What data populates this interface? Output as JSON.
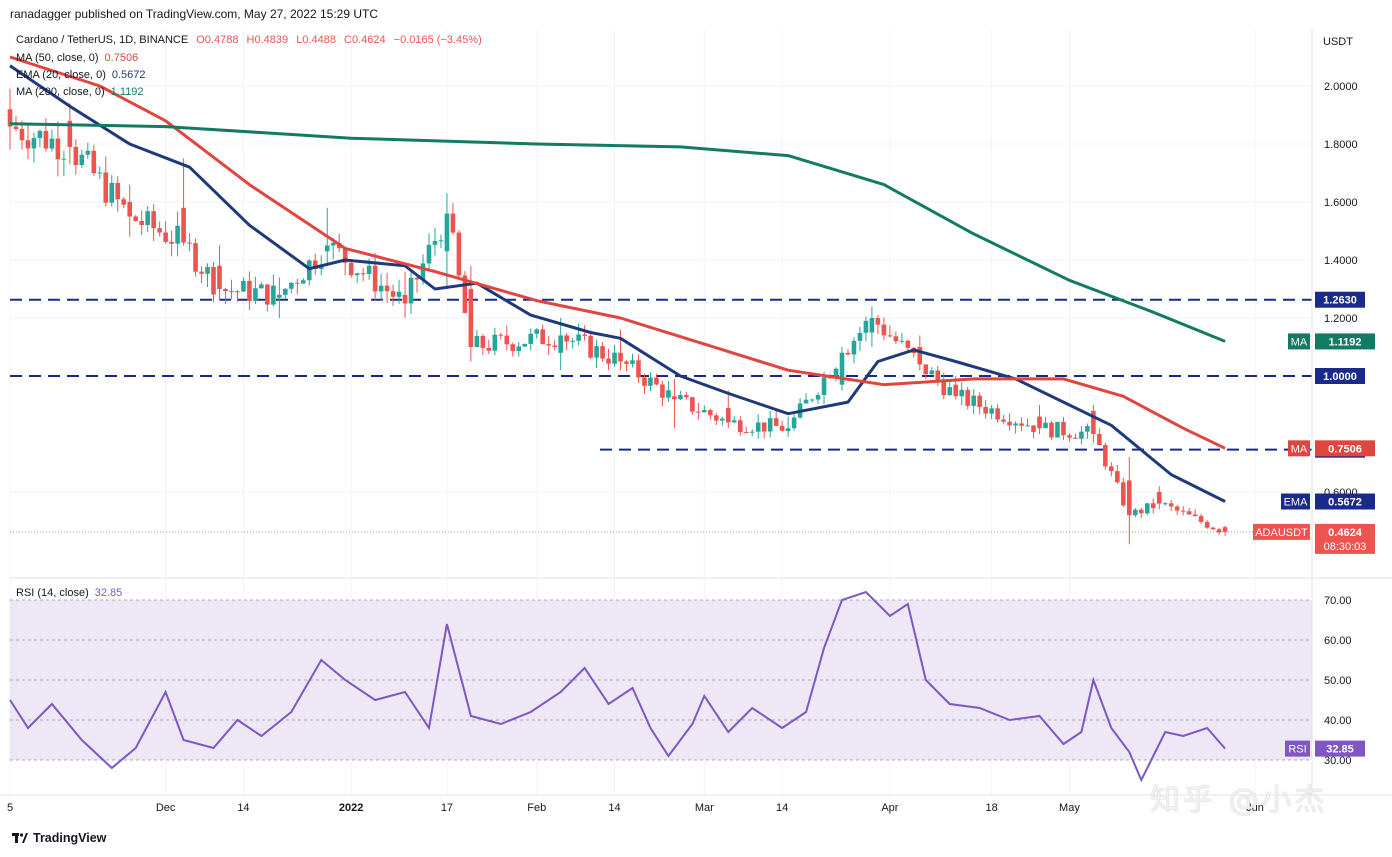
{
  "header": {
    "published": "ranadagger published on TradingView.com, May 27, 2022 15:29 UTC"
  },
  "legend": {
    "symbol": "Cardano / TetherUS, 1D, BINANCE",
    "open": "O0.4788",
    "high": "H0.4839",
    "low": "L0.4488",
    "close": "C0.4624",
    "change": "−0.0165 (−3.45%)",
    "ma50_label": "MA (50, close, 0)",
    "ma50_value": "0.7506",
    "ema20_label": "EMA (20, close, 0)",
    "ema20_value": "0.5672",
    "ma200_label": "MA (200, close, 0)",
    "ma200_value": "1.1192",
    "rsi_label": "RSI (14, close)",
    "rsi_value": "32.85"
  },
  "brand": "TradingView",
  "watermark": "知乎 @小杰",
  "colors": {
    "up": "#26a69a",
    "down": "#ef5350",
    "ema": "#1f3a7a",
    "ma50": "#e0453f",
    "ma200": "#137a63",
    "level": "#1a2a8a",
    "rsi": "#7e57c2",
    "rsi_band": "#ede7f6"
  },
  "chart_data": [
    {
      "type": "candlestick",
      "title": "Cardano / TetherUS, 1D, BINANCE",
      "ylabel": "USDT",
      "y_axis_side": "right",
      "ylim": [
        0.3,
        2.2
      ],
      "y_ticks": [
        "2.0000",
        "1.8000",
        "1.6000",
        "1.4000",
        "1.2000",
        "0.6000"
      ],
      "x_ticks": [
        "5",
        "Dec",
        "14",
        "2022",
        "17",
        "Feb",
        "14",
        "Mar",
        "14",
        "Apr",
        "18",
        "May",
        "Jun"
      ],
      "x_tick_dates": [
        "2021-11-05",
        "2021-12-01",
        "2021-12-14",
        "2022-01-01",
        "2022-01-17",
        "2022-02-01",
        "2022-02-14",
        "2022-03-01",
        "2022-03-14",
        "2022-04-01",
        "2022-04-18",
        "2022-05-01",
        "2022-06-01"
      ],
      "x_range": [
        "2021-11-05",
        "2022-06-01"
      ],
      "series": [
        {
          "name": "EMA (20, close, 0)",
          "points": [
            [
              "2021-11-05",
              2.07
            ],
            [
              "2021-11-15",
              1.93
            ],
            [
              "2021-11-25",
              1.8
            ],
            [
              "2021-12-05",
              1.72
            ],
            [
              "2021-12-15",
              1.52
            ],
            [
              "2021-12-25",
              1.37
            ],
            [
              "2021-12-31",
              1.4
            ],
            [
              "2022-01-10",
              1.38
            ],
            [
              "2022-01-15",
              1.3
            ],
            [
              "2022-01-22",
              1.32
            ],
            [
              "2022-01-31",
              1.21
            ],
            [
              "2022-02-10",
              1.15
            ],
            [
              "2022-02-15",
              1.13
            ],
            [
              "2022-02-25",
              1.0
            ],
            [
              "2022-03-05",
              0.94
            ],
            [
              "2022-03-15",
              0.87
            ],
            [
              "2022-03-25",
              0.91
            ],
            [
              "2022-03-30",
              1.05
            ],
            [
              "2022-04-05",
              1.09
            ],
            [
              "2022-04-12",
              1.05
            ],
            [
              "2022-04-22",
              0.99
            ],
            [
              "2022-05-01",
              0.9
            ],
            [
              "2022-05-08",
              0.83
            ],
            [
              "2022-05-18",
              0.66
            ],
            [
              "2022-05-27",
              0.5672
            ]
          ]
        },
        {
          "name": "MA (50, close, 0)",
          "points": [
            [
              "2021-11-05",
              2.1
            ],
            [
              "2021-11-20",
              2.0
            ],
            [
              "2021-12-01",
              1.88
            ],
            [
              "2021-12-15",
              1.66
            ],
            [
              "2021-12-31",
              1.44
            ],
            [
              "2022-01-15",
              1.36
            ],
            [
              "2022-02-01",
              1.26
            ],
            [
              "2022-02-15",
              1.2
            ],
            [
              "2022-03-01",
              1.11
            ],
            [
              "2022-03-15",
              1.02
            ],
            [
              "2022-03-31",
              0.97
            ],
            [
              "2022-04-15",
              0.99
            ],
            [
              "2022-04-30",
              0.99
            ],
            [
              "2022-05-10",
              0.93
            ],
            [
              "2022-05-20",
              0.82
            ],
            [
              "2022-05-27",
              0.7506
            ]
          ]
        },
        {
          "name": "MA (200, close, 0)",
          "points": [
            [
              "2021-11-05",
              1.87
            ],
            [
              "2021-12-01",
              1.86
            ],
            [
              "2022-01-01",
              1.82
            ],
            [
              "2022-02-01",
              1.8
            ],
            [
              "2022-02-25",
              1.79
            ],
            [
              "2022-03-15",
              1.76
            ],
            [
              "2022-03-31",
              1.66
            ],
            [
              "2022-04-15",
              1.49
            ],
            [
              "2022-05-01",
              1.33
            ],
            [
              "2022-05-15",
              1.22
            ],
            [
              "2022-05-27",
              1.1192
            ]
          ]
        }
      ],
      "ohlc_sample": [
        [
          "2021-11-05",
          1.92,
          1.99,
          1.78,
          1.86
        ],
        [
          "2021-11-15",
          1.88,
          1.94,
          1.73,
          1.79
        ],
        [
          "2021-11-25",
          1.6,
          1.66,
          1.48,
          1.55
        ],
        [
          "2021-12-04",
          1.58,
          1.75,
          1.45,
          1.46
        ],
        [
          "2021-12-10",
          1.38,
          1.45,
          1.26,
          1.3
        ],
        [
          "2021-12-20",
          1.27,
          1.34,
          1.2,
          1.28
        ],
        [
          "2021-12-28",
          1.43,
          1.58,
          1.38,
          1.45
        ],
        [
          "2022-01-10",
          1.28,
          1.36,
          1.2,
          1.25
        ],
        [
          "2022-01-17",
          1.43,
          1.63,
          1.3,
          1.56
        ],
        [
          "2022-01-21",
          1.3,
          1.38,
          1.05,
          1.1
        ],
        [
          "2022-02-05",
          1.08,
          1.2,
          1.02,
          1.14
        ],
        [
          "2022-02-15",
          1.08,
          1.16,
          1.02,
          1.05
        ],
        [
          "2022-02-24",
          0.93,
          0.99,
          0.82,
          0.92
        ],
        [
          "2022-03-05",
          0.89,
          0.95,
          0.82,
          0.84
        ],
        [
          "2022-03-15",
          0.81,
          0.86,
          0.79,
          0.82
        ],
        [
          "2022-03-24",
          0.97,
          1.1,
          0.95,
          1.08
        ],
        [
          "2022-03-29",
          1.15,
          1.24,
          1.1,
          1.2
        ],
        [
          "2022-04-06",
          1.1,
          1.14,
          1.02,
          1.04
        ],
        [
          "2022-04-12",
          0.97,
          1.0,
          0.92,
          0.93
        ],
        [
          "2022-04-26",
          0.86,
          0.9,
          0.8,
          0.82
        ],
        [
          "2022-05-05",
          0.88,
          0.9,
          0.77,
          0.8
        ],
        [
          "2022-05-11",
          0.64,
          0.72,
          0.42,
          0.52
        ],
        [
          "2022-05-16",
          0.6,
          0.62,
          0.54,
          0.56
        ],
        [
          "2022-05-27",
          0.4788,
          0.4839,
          0.4488,
          0.4624
        ]
      ],
      "horizontal_levels": [
        "1.2630",
        "1.0000",
        "0.7460"
      ],
      "price_labels": [
        {
          "tag": "MA",
          "value": "1.1192"
        },
        {
          "tag": "MA",
          "value": "0.7506"
        },
        {
          "tag": "EMA",
          "value": "0.5672"
        },
        {
          "tag": "ADAUSDT",
          "value": "0.4624",
          "countdown": "08:30:03"
        }
      ]
    },
    {
      "type": "line",
      "title": "RSI (14, close)",
      "ylim": [
        20,
        75
      ],
      "y_ticks": [
        "70.00",
        "60.00",
        "50.00",
        "40.00",
        "30.00"
      ],
      "band": [
        30,
        70
      ],
      "series": [
        {
          "name": "RSI (14, close)",
          "points": [
            [
              "2021-11-05",
              45
            ],
            [
              "2021-11-08",
              38
            ],
            [
              "2021-11-12",
              44
            ],
            [
              "2021-11-17",
              35
            ],
            [
              "2021-11-22",
              28
            ],
            [
              "2021-11-26",
              33
            ],
            [
              "2021-12-01",
              47
            ],
            [
              "2021-12-04",
              35
            ],
            [
              "2021-12-09",
              33
            ],
            [
              "2021-12-13",
              40
            ],
            [
              "2021-12-17",
              36
            ],
            [
              "2021-12-22",
              42
            ],
            [
              "2021-12-27",
              55
            ],
            [
              "2021-12-31",
              50
            ],
            [
              "2022-01-05",
              45
            ],
            [
              "2022-01-10",
              47
            ],
            [
              "2022-01-14",
              38
            ],
            [
              "2022-01-17",
              64
            ],
            [
              "2022-01-21",
              41
            ],
            [
              "2022-01-26",
              39
            ],
            [
              "2022-01-31",
              42
            ],
            [
              "2022-02-05",
              47
            ],
            [
              "2022-02-09",
              53
            ],
            [
              "2022-02-13",
              44
            ],
            [
              "2022-02-17",
              48
            ],
            [
              "2022-02-20",
              38
            ],
            [
              "2022-02-23",
              31
            ],
            [
              "2022-02-27",
              39
            ],
            [
              "2022-03-01",
              46
            ],
            [
              "2022-03-05",
              37
            ],
            [
              "2022-03-09",
              43
            ],
            [
              "2022-03-14",
              38
            ],
            [
              "2022-03-18",
              42
            ],
            [
              "2022-03-21",
              58
            ],
            [
              "2022-03-24",
              70
            ],
            [
              "2022-03-28",
              72
            ],
            [
              "2022-04-01",
              66
            ],
            [
              "2022-04-04",
              69
            ],
            [
              "2022-04-07",
              50
            ],
            [
              "2022-04-11",
              44
            ],
            [
              "2022-04-16",
              43
            ],
            [
              "2022-04-21",
              40
            ],
            [
              "2022-04-26",
              41
            ],
            [
              "2022-04-30",
              34
            ],
            [
              "2022-05-03",
              37
            ],
            [
              "2022-05-05",
              50
            ],
            [
              "2022-05-08",
              38
            ],
            [
              "2022-05-11",
              32
            ],
            [
              "2022-05-13",
              25
            ],
            [
              "2022-05-17",
              37
            ],
            [
              "2022-05-20",
              36
            ],
            [
              "2022-05-24",
              38
            ],
            [
              "2022-05-27",
              32.85
            ]
          ]
        }
      ]
    }
  ]
}
